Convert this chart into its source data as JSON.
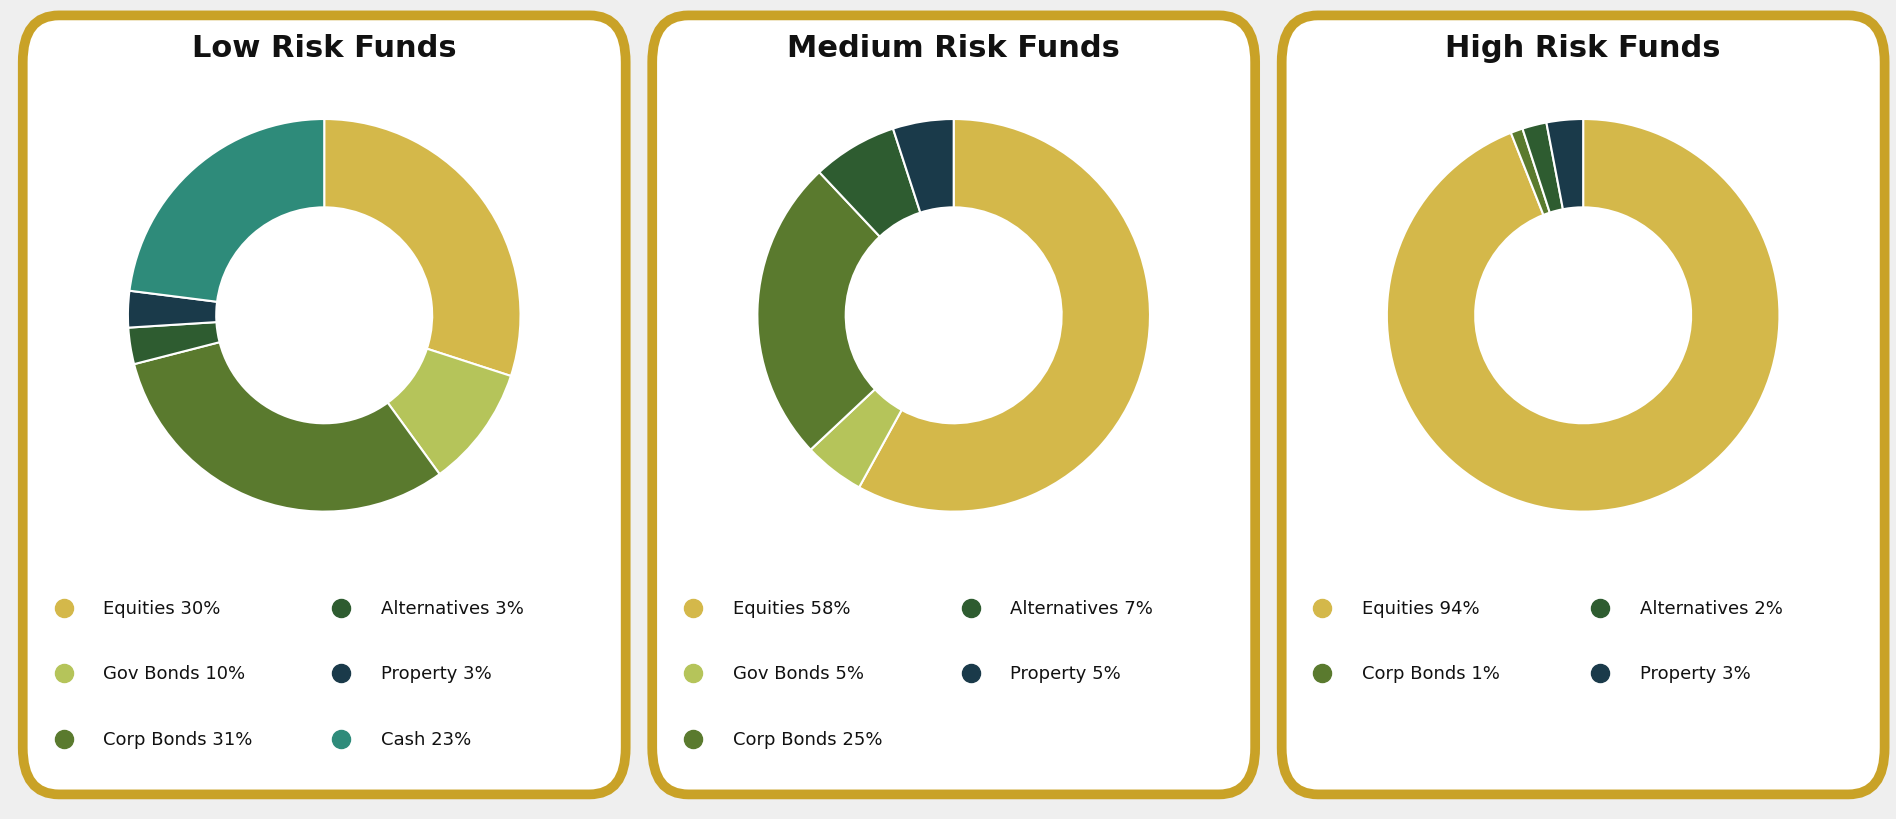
{
  "charts": [
    {
      "title": "Low Risk Funds",
      "slices": [
        {
          "label": "Equities 30%",
          "value": 30,
          "color": "#D4B84A"
        },
        {
          "label": "Gov Bonds 10%",
          "value": 10,
          "color": "#B5C45A"
        },
        {
          "label": "Corp Bonds 31%",
          "value": 31,
          "color": "#5A7A2E"
        },
        {
          "label": "Alternatives 3%",
          "value": 3,
          "color": "#2E5C30"
        },
        {
          "label": "Property 3%",
          "value": 3,
          "color": "#1A3A4A"
        },
        {
          "label": "Cash 23%",
          "value": 23,
          "color": "#2E8B7A"
        }
      ],
      "legend_col1": [
        [
          "Equities 30%",
          "#D4B84A"
        ],
        [
          "Gov Bonds 10%",
          "#B5C45A"
        ],
        [
          "Corp Bonds 31%",
          "#5A7A2E"
        ]
      ],
      "legend_col2": [
        [
          "Alternatives 3%",
          "#2E5C30"
        ],
        [
          "Property 3%",
          "#1A3A4A"
        ],
        [
          "Cash 23%",
          "#2E8B7A"
        ]
      ]
    },
    {
      "title": "Medium Risk Funds",
      "slices": [
        {
          "label": "Equities 58%",
          "value": 58,
          "color": "#D4B84A"
        },
        {
          "label": "Gov Bonds 5%",
          "value": 5,
          "color": "#B5C45A"
        },
        {
          "label": "Corp Bonds 25%",
          "value": 25,
          "color": "#5A7A2E"
        },
        {
          "label": "Alternatives 7%",
          "value": 7,
          "color": "#2E5C30"
        },
        {
          "label": "Property 5%",
          "value": 5,
          "color": "#1A3A4A"
        }
      ],
      "legend_col1": [
        [
          "Equities 58%",
          "#D4B84A"
        ],
        [
          "Gov Bonds 5%",
          "#B5C45A"
        ],
        [
          "Corp Bonds 25%",
          "#5A7A2E"
        ]
      ],
      "legend_col2": [
        [
          "Alternatives 7%",
          "#2E5C30"
        ],
        [
          "Property 5%",
          "#1A3A4A"
        ]
      ]
    },
    {
      "title": "High Risk Funds",
      "slices": [
        {
          "label": "Equities 94%",
          "value": 94,
          "color": "#D4B84A"
        },
        {
          "label": "Corp Bonds 1%",
          "value": 1,
          "color": "#5A7A2E"
        },
        {
          "label": "Alternatives 2%",
          "value": 2,
          "color": "#2E5C30"
        },
        {
          "label": "Property 3%",
          "value": 3,
          "color": "#1A3A4A"
        }
      ],
      "legend_col1": [
        [
          "Equities 94%",
          "#D4B84A"
        ],
        [
          "Corp Bonds 1%",
          "#5A7A2E"
        ]
      ],
      "legend_col2": [
        [
          "Alternatives 2%",
          "#2E5C30"
        ],
        [
          "Property 3%",
          "#1A3A4A"
        ]
      ]
    }
  ],
  "border_color": "#C9A227",
  "border_linewidth": 7,
  "bg_color": "#FFFFFF",
  "fig_bg": "#EFEFEF",
  "title_fontsize": 22,
  "title_fontweight": "bold",
  "legend_fontsize": 13,
  "donut_width": 0.45,
  "start_angle": 90
}
